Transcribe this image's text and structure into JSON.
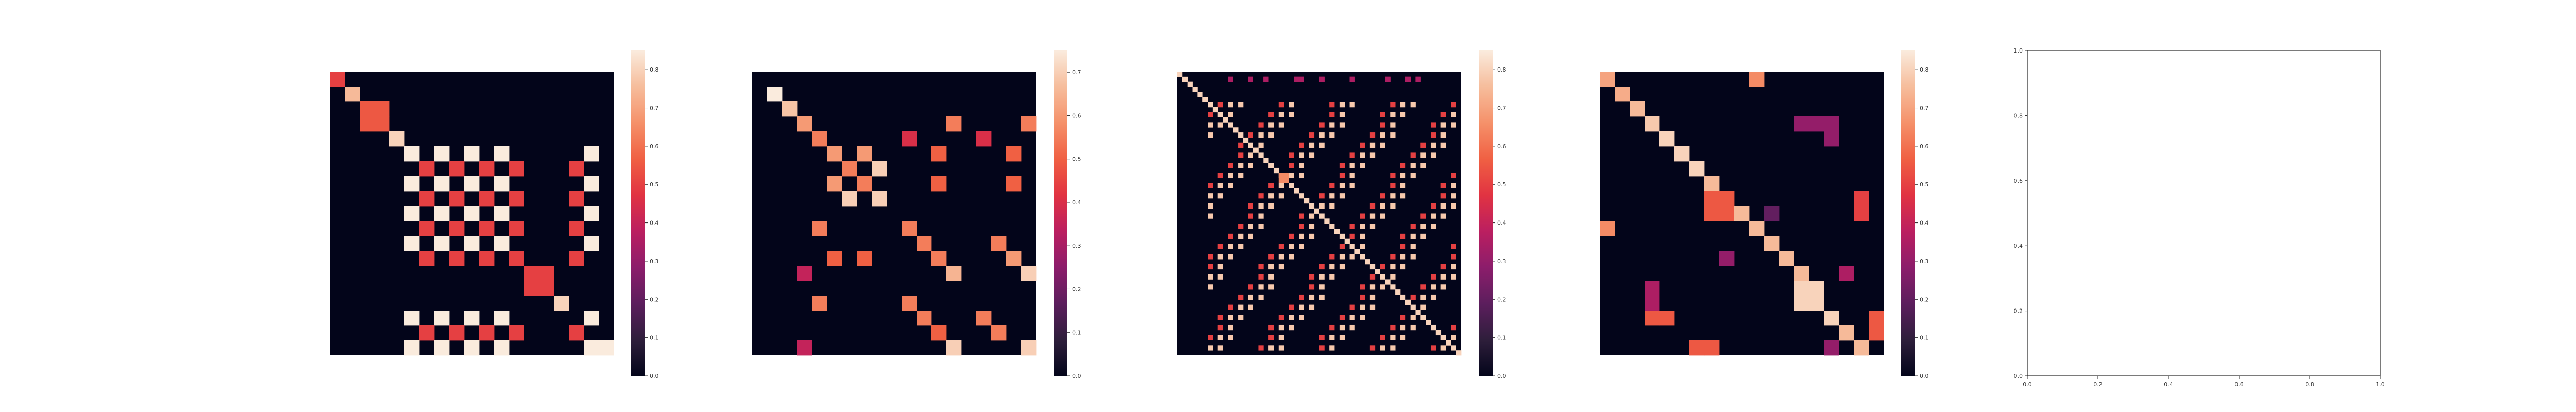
{
  "colors": {
    "background": "#ffffff",
    "axis_frame": "#222222",
    "colormap": "rocket",
    "colormap_stops": [
      "#03051a",
      "#2e1e3b",
      "#5c1e5d",
      "#8c1d6b",
      "#bb1f60",
      "#e13342",
      "#f06043",
      "#f5916a",
      "#f6bd9c",
      "#faebdd"
    ]
  },
  "chart_data": [
    {
      "type": "heatmap",
      "panel": 1,
      "n": 19,
      "colorbar": {
        "vmin": 0,
        "vmax": 0.85,
        "ticks": [
          "0.0",
          "0.1",
          "0.2",
          "0.3",
          "0.4",
          "0.5",
          "0.6",
          "0.7",
          "0.8"
        ]
      },
      "cells": [
        {
          "r": 0,
          "c": 0,
          "v": 0.5
        },
        {
          "r": 1,
          "c": 1,
          "v": 0.75
        },
        {
          "r": 2,
          "c": 2,
          "v": 0.55
        },
        {
          "r": 2,
          "c": 3,
          "v": 0.55
        },
        {
          "r": 3,
          "c": 2,
          "v": 0.55
        },
        {
          "r": 3,
          "c": 3,
          "v": 0.55
        },
        {
          "r": 4,
          "c": 4,
          "v": 0.8
        },
        {
          "r": 5,
          "c": 5,
          "v": 0.85
        },
        {
          "r": 5,
          "c": 7,
          "v": 0.85
        },
        {
          "r": 5,
          "c": 9,
          "v": 0.85
        },
        {
          "r": 5,
          "c": 11,
          "v": 0.85
        },
        {
          "r": 5,
          "c": 17,
          "v": 0.85
        },
        {
          "r": 6,
          "c": 6,
          "v": 0.5
        },
        {
          "r": 6,
          "c": 8,
          "v": 0.5
        },
        {
          "r": 6,
          "c": 10,
          "v": 0.5
        },
        {
          "r": 6,
          "c": 12,
          "v": 0.5
        },
        {
          "r": 6,
          "c": 16,
          "v": 0.5
        },
        {
          "r": 7,
          "c": 5,
          "v": 0.85
        },
        {
          "r": 7,
          "c": 7,
          "v": 0.85
        },
        {
          "r": 7,
          "c": 9,
          "v": 0.85
        },
        {
          "r": 7,
          "c": 11,
          "v": 0.85
        },
        {
          "r": 7,
          "c": 17,
          "v": 0.85
        },
        {
          "r": 8,
          "c": 6,
          "v": 0.5
        },
        {
          "r": 8,
          "c": 8,
          "v": 0.5
        },
        {
          "r": 8,
          "c": 10,
          "v": 0.5
        },
        {
          "r": 8,
          "c": 12,
          "v": 0.5
        },
        {
          "r": 8,
          "c": 16,
          "v": 0.5
        },
        {
          "r": 9,
          "c": 5,
          "v": 0.85
        },
        {
          "r": 9,
          "c": 7,
          "v": 0.85
        },
        {
          "r": 9,
          "c": 9,
          "v": 0.85
        },
        {
          "r": 9,
          "c": 11,
          "v": 0.85
        },
        {
          "r": 9,
          "c": 17,
          "v": 0.85
        },
        {
          "r": 10,
          "c": 6,
          "v": 0.5
        },
        {
          "r": 10,
          "c": 8,
          "v": 0.5
        },
        {
          "r": 10,
          "c": 10,
          "v": 0.5
        },
        {
          "r": 10,
          "c": 12,
          "v": 0.5
        },
        {
          "r": 10,
          "c": 16,
          "v": 0.5
        },
        {
          "r": 11,
          "c": 5,
          "v": 0.85
        },
        {
          "r": 11,
          "c": 7,
          "v": 0.85
        },
        {
          "r": 11,
          "c": 9,
          "v": 0.85
        },
        {
          "r": 11,
          "c": 11,
          "v": 0.85
        },
        {
          "r": 11,
          "c": 17,
          "v": 0.85
        },
        {
          "r": 12,
          "c": 6,
          "v": 0.5
        },
        {
          "r": 12,
          "c": 8,
          "v": 0.5
        },
        {
          "r": 12,
          "c": 10,
          "v": 0.5
        },
        {
          "r": 12,
          "c": 12,
          "v": 0.5
        },
        {
          "r": 12,
          "c": 16,
          "v": 0.5
        },
        {
          "r": 13,
          "c": 13,
          "v": 0.5
        },
        {
          "r": 13,
          "c": 14,
          "v": 0.5
        },
        {
          "r": 14,
          "c": 13,
          "v": 0.5
        },
        {
          "r": 14,
          "c": 14,
          "v": 0.5
        },
        {
          "r": 15,
          "c": 15,
          "v": 0.8
        },
        {
          "r": 16,
          "c": 5,
          "v": 0.85
        },
        {
          "r": 16,
          "c": 7,
          "v": 0.85
        },
        {
          "r": 16,
          "c": 9,
          "v": 0.85
        },
        {
          "r": 16,
          "c": 11,
          "v": 0.85
        },
        {
          "r": 16,
          "c": 17,
          "v": 0.85
        },
        {
          "r": 17,
          "c": 6,
          "v": 0.5
        },
        {
          "r": 17,
          "c": 8,
          "v": 0.5
        },
        {
          "r": 17,
          "c": 10,
          "v": 0.5
        },
        {
          "r": 17,
          "c": 12,
          "v": 0.5
        },
        {
          "r": 17,
          "c": 16,
          "v": 0.5
        },
        {
          "r": 18,
          "c": 5,
          "v": 0.85
        },
        {
          "r": 18,
          "c": 7,
          "v": 0.85
        },
        {
          "r": 18,
          "c": 9,
          "v": 0.85
        },
        {
          "r": 18,
          "c": 11,
          "v": 0.85
        },
        {
          "r": 18,
          "c": 17,
          "v": 0.85
        },
        {
          "r": 18,
          "c": 18,
          "v": 0.85
        }
      ]
    },
    {
      "type": "heatmap",
      "panel": 2,
      "n": 19,
      "colorbar": {
        "vmin": 0,
        "vmax": 0.75,
        "ticks": [
          "0.0",
          "0.1",
          "0.2",
          "0.3",
          "0.4",
          "0.5",
          "0.6",
          "0.7"
        ]
      },
      "cells": [
        {
          "r": 1,
          "c": 1,
          "v": 0.75
        },
        {
          "r": 2,
          "c": 2,
          "v": 0.68
        },
        {
          "r": 3,
          "c": 3,
          "v": 0.6
        },
        {
          "r": 3,
          "c": 13,
          "v": 0.55
        },
        {
          "r": 3,
          "c": 18,
          "v": 0.55
        },
        {
          "r": 4,
          "c": 4,
          "v": 0.55
        },
        {
          "r": 4,
          "c": 10,
          "v": 0.4
        },
        {
          "r": 4,
          "c": 15,
          "v": 0.4
        },
        {
          "r": 5,
          "c": 5,
          "v": 0.6
        },
        {
          "r": 5,
          "c": 7,
          "v": 0.6
        },
        {
          "r": 5,
          "c": 12,
          "v": 0.5
        },
        {
          "r": 5,
          "c": 17,
          "v": 0.5
        },
        {
          "r": 6,
          "c": 6,
          "v": 0.55
        },
        {
          "r": 6,
          "c": 8,
          "v": 0.7
        },
        {
          "r": 7,
          "c": 5,
          "v": 0.6
        },
        {
          "r": 7,
          "c": 7,
          "v": 0.55
        },
        {
          "r": 7,
          "c": 12,
          "v": 0.5
        },
        {
          "r": 7,
          "c": 17,
          "v": 0.5
        },
        {
          "r": 8,
          "c": 6,
          "v": 0.7
        },
        {
          "r": 8,
          "c": 8,
          "v": 0.7
        },
        {
          "r": 10,
          "c": 4,
          "v": 0.55
        },
        {
          "r": 10,
          "c": 10,
          "v": 0.55
        },
        {
          "r": 11,
          "c": 11,
          "v": 0.55
        },
        {
          "r": 11,
          "c": 16,
          "v": 0.55
        },
        {
          "r": 12,
          "c": 5,
          "v": 0.5
        },
        {
          "r": 12,
          "c": 7,
          "v": 0.5
        },
        {
          "r": 12,
          "c": 12,
          "v": 0.55
        },
        {
          "r": 12,
          "c": 17,
          "v": 0.6
        },
        {
          "r": 13,
          "c": 3,
          "v": 0.35
        },
        {
          "r": 13,
          "c": 13,
          "v": 0.65
        },
        {
          "r": 13,
          "c": 18,
          "v": 0.7
        },
        {
          "r": 15,
          "c": 4,
          "v": 0.55
        },
        {
          "r": 15,
          "c": 10,
          "v": 0.55
        },
        {
          "r": 16,
          "c": 11,
          "v": 0.55
        },
        {
          "r": 16,
          "c": 15,
          "v": 0.55
        },
        {
          "r": 17,
          "c": 12,
          "v": 0.5
        },
        {
          "r": 17,
          "c": 16,
          "v": 0.55
        },
        {
          "r": 18,
          "c": 3,
          "v": 0.35
        },
        {
          "r": 18,
          "c": 13,
          "v": 0.7
        },
        {
          "r": 18,
          "c": 18,
          "v": 0.7
        }
      ]
    },
    {
      "type": "heatmap",
      "panel": 3,
      "n": 56,
      "pattern": "banded block structure with diagonal; dense light and red cells",
      "colorbar": {
        "vmin": 0,
        "vmax": 0.85,
        "ticks": [
          "0.0",
          "0.1",
          "0.2",
          "0.3",
          "0.4",
          "0.5",
          "0.6",
          "0.7",
          "0.8"
        ]
      }
    },
    {
      "type": "heatmap",
      "panel": 4,
      "n": 19,
      "colorbar": {
        "vmin": 0,
        "vmax": 0.85,
        "ticks": [
          "0.0",
          "0.1",
          "0.2",
          "0.3",
          "0.4",
          "0.5",
          "0.6",
          "0.7",
          "0.8"
        ]
      },
      "cells": [
        {
          "r": 0,
          "c": 0,
          "v": 0.7
        },
        {
          "r": 0,
          "c": 10,
          "v": 0.65
        },
        {
          "r": 1,
          "c": 1,
          "v": 0.72
        },
        {
          "r": 2,
          "c": 2,
          "v": 0.75
        },
        {
          "r": 3,
          "c": 3,
          "v": 0.78
        },
        {
          "r": 3,
          "c": 13,
          "v": 0.3
        },
        {
          "r": 3,
          "c": 14,
          "v": 0.3
        },
        {
          "r": 3,
          "c": 15,
          "v": 0.3
        },
        {
          "r": 4,
          "c": 4,
          "v": 0.8
        },
        {
          "r": 4,
          "c": 15,
          "v": 0.3
        },
        {
          "r": 5,
          "c": 5,
          "v": 0.8
        },
        {
          "r": 6,
          "c": 6,
          "v": 0.8
        },
        {
          "r": 7,
          "c": 7,
          "v": 0.75
        },
        {
          "r": 8,
          "c": 7,
          "v": 0.55
        },
        {
          "r": 8,
          "c": 8,
          "v": 0.55
        },
        {
          "r": 8,
          "c": 17,
          "v": 0.5
        },
        {
          "r": 9,
          "c": 7,
          "v": 0.55
        },
        {
          "r": 9,
          "c": 8,
          "v": 0.55
        },
        {
          "r": 9,
          "c": 9,
          "v": 0.75
        },
        {
          "r": 9,
          "c": 11,
          "v": 0.2
        },
        {
          "r": 9,
          "c": 17,
          "v": 0.5
        },
        {
          "r": 10,
          "c": 0,
          "v": 0.65
        },
        {
          "r": 10,
          "c": 10,
          "v": 0.75
        },
        {
          "r": 11,
          "c": 11,
          "v": 0.75
        },
        {
          "r": 12,
          "c": 8,
          "v": 0.3
        },
        {
          "r": 12,
          "c": 12,
          "v": 0.75
        },
        {
          "r": 13,
          "c": 13,
          "v": 0.75
        },
        {
          "r": 13,
          "c": 16,
          "v": 0.35
        },
        {
          "r": 14,
          "c": 3,
          "v": 0.35
        },
        {
          "r": 14,
          "c": 13,
          "v": 0.8
        },
        {
          "r": 14,
          "c": 14,
          "v": 0.8
        },
        {
          "r": 15,
          "c": 3,
          "v": 0.35
        },
        {
          "r": 15,
          "c": 13,
          "v": 0.8
        },
        {
          "r": 15,
          "c": 14,
          "v": 0.8
        },
        {
          "r": 16,
          "c": 3,
          "v": 0.55
        },
        {
          "r": 16,
          "c": 4,
          "v": 0.55
        },
        {
          "r": 16,
          "c": 15,
          "v": 0.8
        },
        {
          "r": 16,
          "c": 18,
          "v": 0.55
        },
        {
          "r": 17,
          "c": 16,
          "v": 0.75
        },
        {
          "r": 17,
          "c": 18,
          "v": 0.55
        },
        {
          "r": 18,
          "c": 6,
          "v": 0.55
        },
        {
          "r": 18,
          "c": 7,
          "v": 0.55
        },
        {
          "r": 18,
          "c": 15,
          "v": 0.3
        },
        {
          "r": 18,
          "c": 17,
          "v": 0.75
        }
      ]
    },
    {
      "type": "scatter",
      "panel": 5,
      "empty": true,
      "xlim": [
        0,
        1
      ],
      "ylim": [
        0,
        1
      ],
      "x_ticks": [
        "0.0",
        "0.2",
        "0.4",
        "0.6",
        "0.8",
        "1.0"
      ],
      "y_ticks": [
        "0.0",
        "0.2",
        "0.4",
        "0.6",
        "0.8",
        "1.0"
      ]
    }
  ]
}
